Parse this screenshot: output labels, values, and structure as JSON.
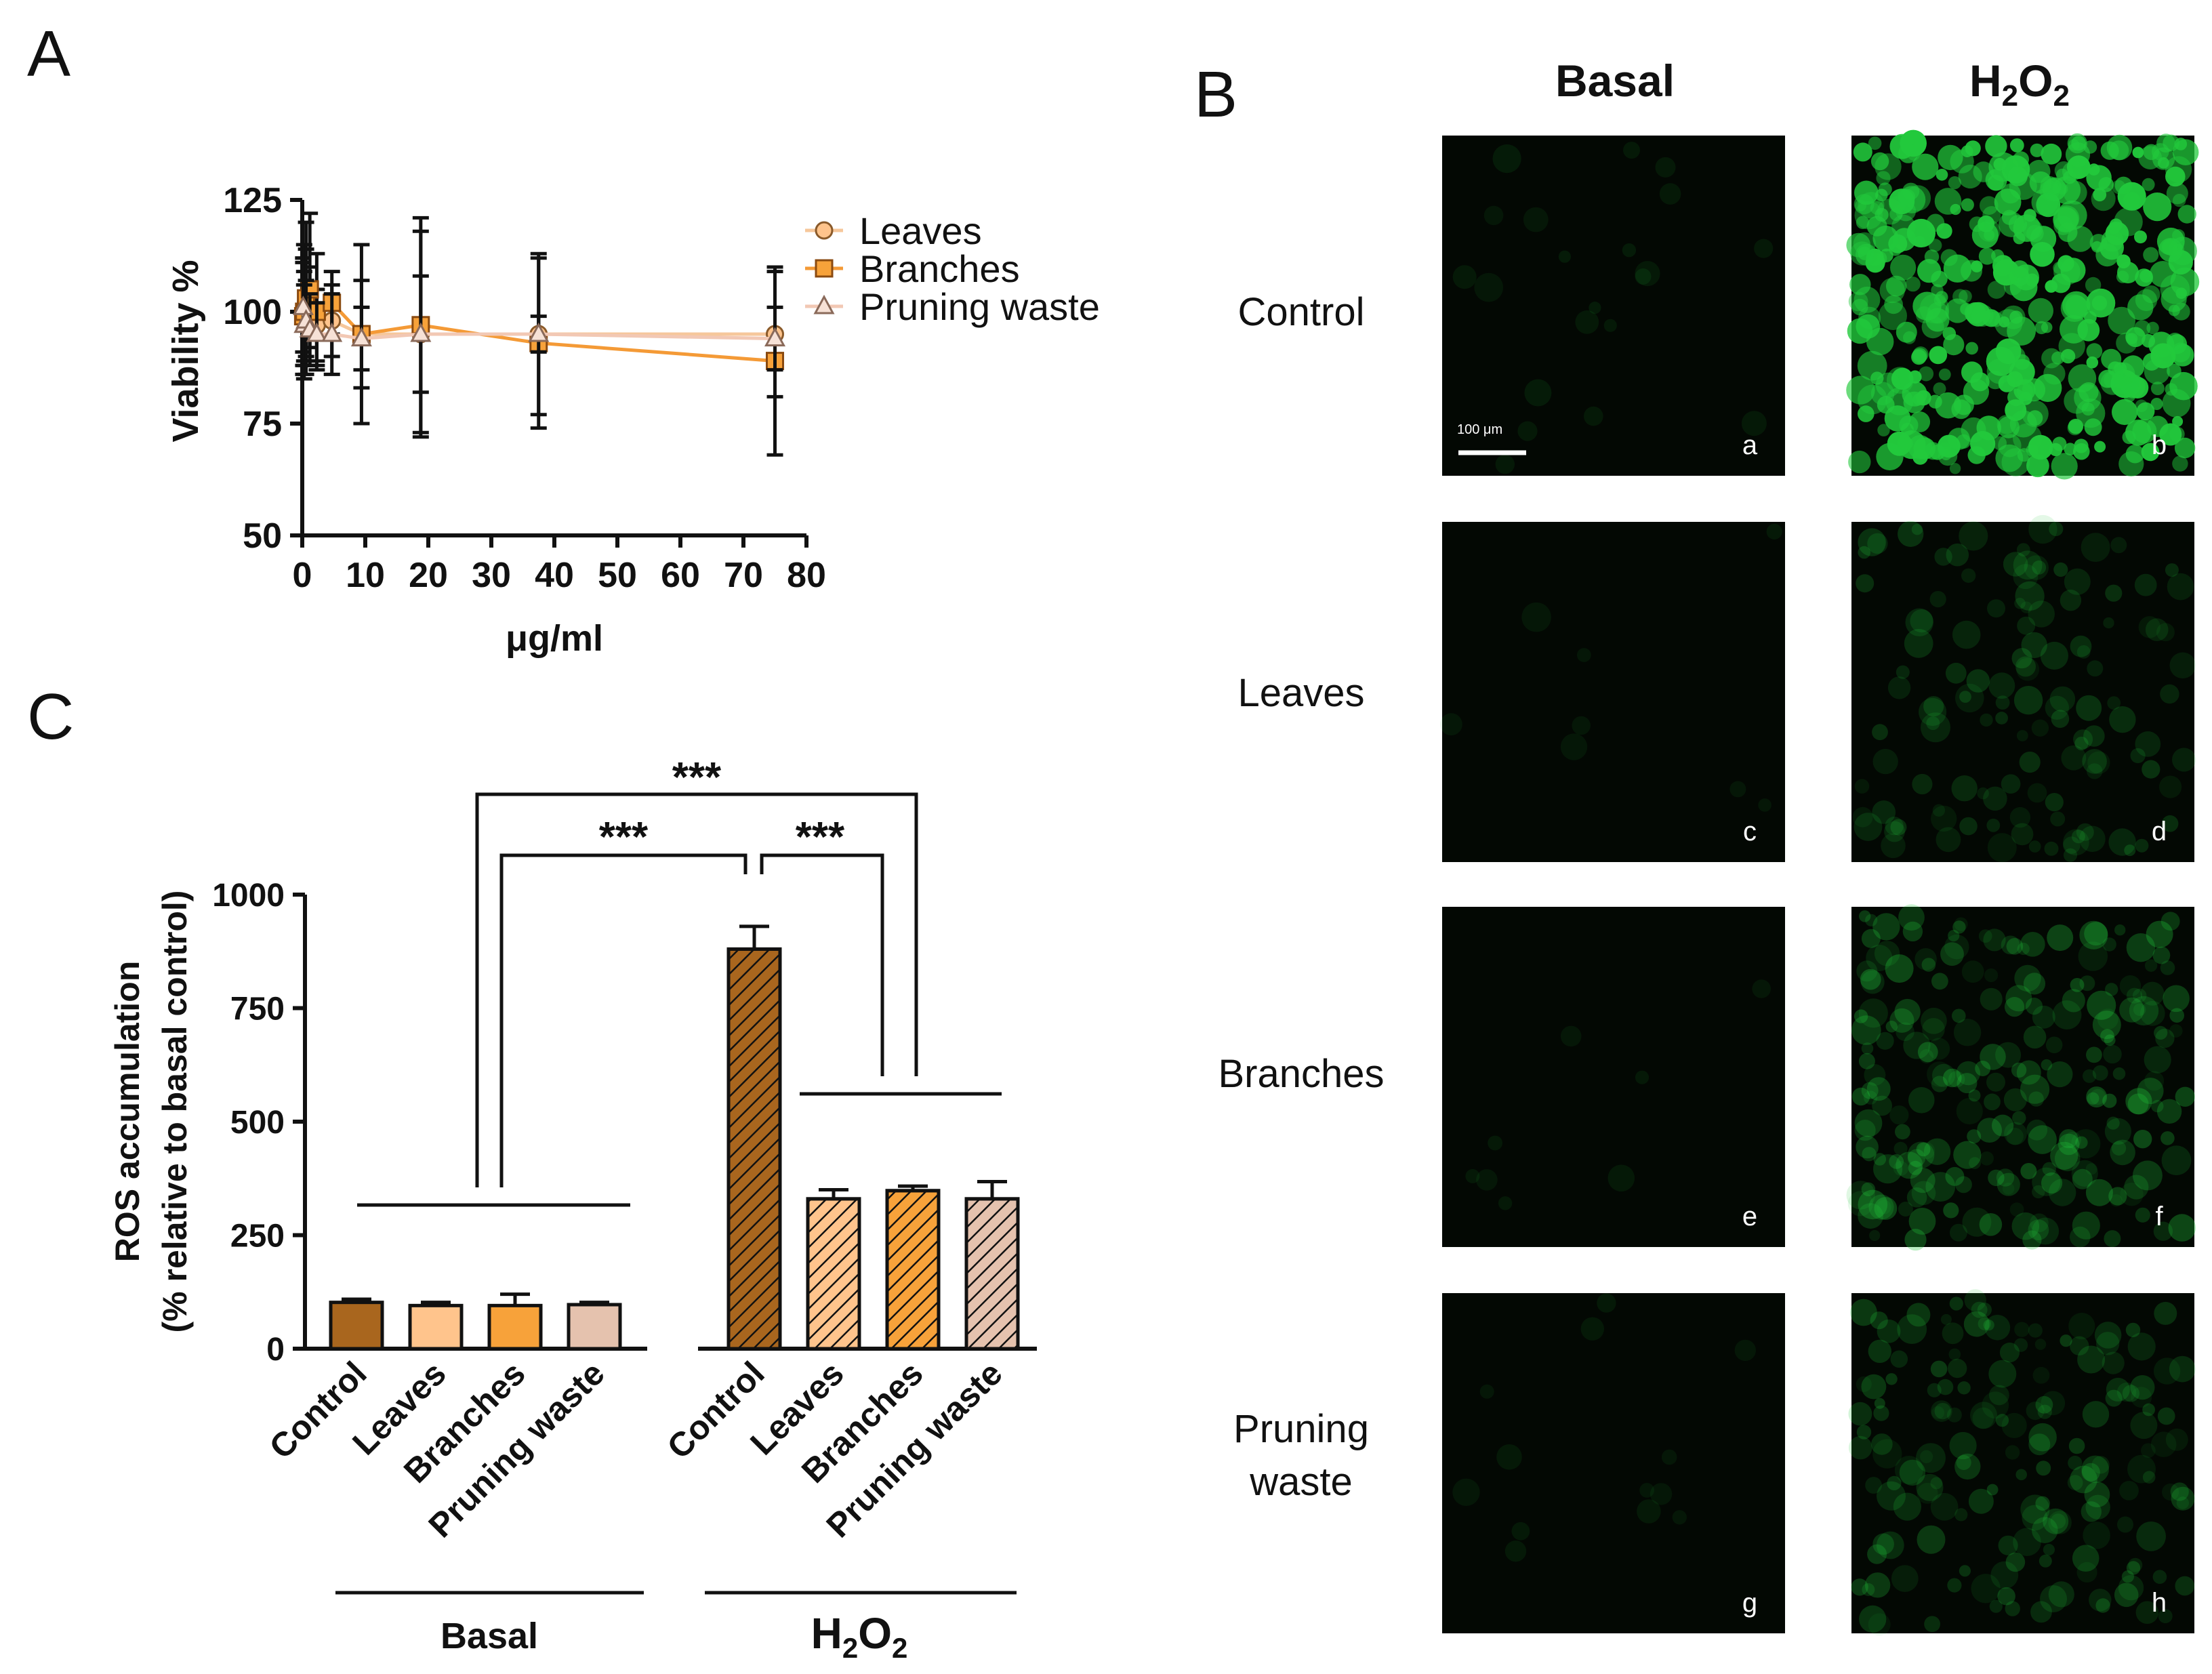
{
  "panels": {
    "A": "A",
    "B": "B",
    "C": "C"
  },
  "colors": {
    "leaves": "#FFC48C",
    "branches": "#F7A23A",
    "pruning_waste": "#E5C2AE",
    "control": "#A9661E",
    "line_leaves": "#F6C79B",
    "line_branches": "#F49A36",
    "line_pruning": "#F2C8B4",
    "fluorescence": "#22c93c"
  },
  "chart_data": [
    {
      "id": "A",
      "type": "line",
      "xlabel": "μg/ml",
      "ylabel": "Viability %",
      "xlim": [
        0,
        80
      ],
      "ylim": [
        50,
        125
      ],
      "xticks": [
        "0",
        "10",
        "20",
        "30",
        "40",
        "50",
        "60",
        "70",
        "80"
      ],
      "yticks": [
        "50",
        "75",
        "100",
        "125"
      ],
      "legend_position": "top-right",
      "series": [
        {
          "name": "Leaves",
          "marker": "circle",
          "x": [
            0.15,
            0.3,
            0.6,
            1.2,
            2.3,
            4.7,
            9.4,
            18.8,
            37.5,
            75
          ],
          "y": [
            100,
            99,
            102,
            101,
            97,
            98,
            95,
            95,
            95,
            95
          ],
          "err": [
            12,
            10,
            12,
            9,
            8,
            8,
            20,
            23,
            18,
            14
          ]
        },
        {
          "name": "Branches",
          "marker": "square",
          "x": [
            0.15,
            0.3,
            0.6,
            1.2,
            2.3,
            4.7,
            9.4,
            18.8,
            37.5,
            75
          ],
          "y": [
            99,
            100,
            103,
            105,
            100,
            102,
            95,
            97,
            93,
            89
          ],
          "err": [
            13,
            15,
            17,
            17,
            13,
            7,
            12,
            24,
            19,
            21
          ]
        },
        {
          "name": "Pruning waste",
          "marker": "triangle",
          "x": [
            0.15,
            0.3,
            0.6,
            1.2,
            2.3,
            4.7,
            9.4,
            18.8,
            37.5,
            75
          ],
          "y": [
            101,
            97,
            98,
            96,
            95,
            95,
            94,
            95,
            95,
            94
          ],
          "err": [
            10,
            9,
            9,
            8,
            7,
            9,
            7,
            13,
            4,
            7
          ]
        }
      ]
    },
    {
      "id": "C",
      "type": "bar",
      "ylabel_line1": "ROS accumulation",
      "ylabel_line2": "(% relative to basal control)",
      "ylim": [
        0,
        1000
      ],
      "yticks": [
        "0",
        "250",
        "500",
        "750",
        "1000"
      ],
      "groups": [
        {
          "label": "Basal",
          "categories": [
            "Control",
            "Leaves",
            "Branches",
            "Pruning waste"
          ],
          "values": [
            102,
            95,
            95,
            97
          ],
          "err": [
            7,
            7,
            25,
            5
          ]
        },
        {
          "label_main": "H",
          "label_sub1": "2",
          "label_mid": "O",
          "label_sub2": "2",
          "categories": [
            "Control",
            "Leaves",
            "Branches",
            "Pruning waste"
          ],
          "values": [
            880,
            330,
            348,
            330
          ],
          "err": [
            50,
            20,
            10,
            38
          ]
        }
      ],
      "significance": [
        "***",
        "***",
        "***"
      ]
    }
  ],
  "panel_b": {
    "col_basal": "Basal",
    "col_h2o2_main": "H",
    "col_h2o2_sub1": "2",
    "col_h2o2_mid": "O",
    "col_h2o2_sub2": "2",
    "rows": [
      "Control",
      "Leaves",
      "Branches",
      "Pruning",
      "waste"
    ],
    "letters": [
      "a",
      "b",
      "c",
      "d",
      "e",
      "f",
      "g",
      "h"
    ],
    "scalebar": "100 μm"
  }
}
